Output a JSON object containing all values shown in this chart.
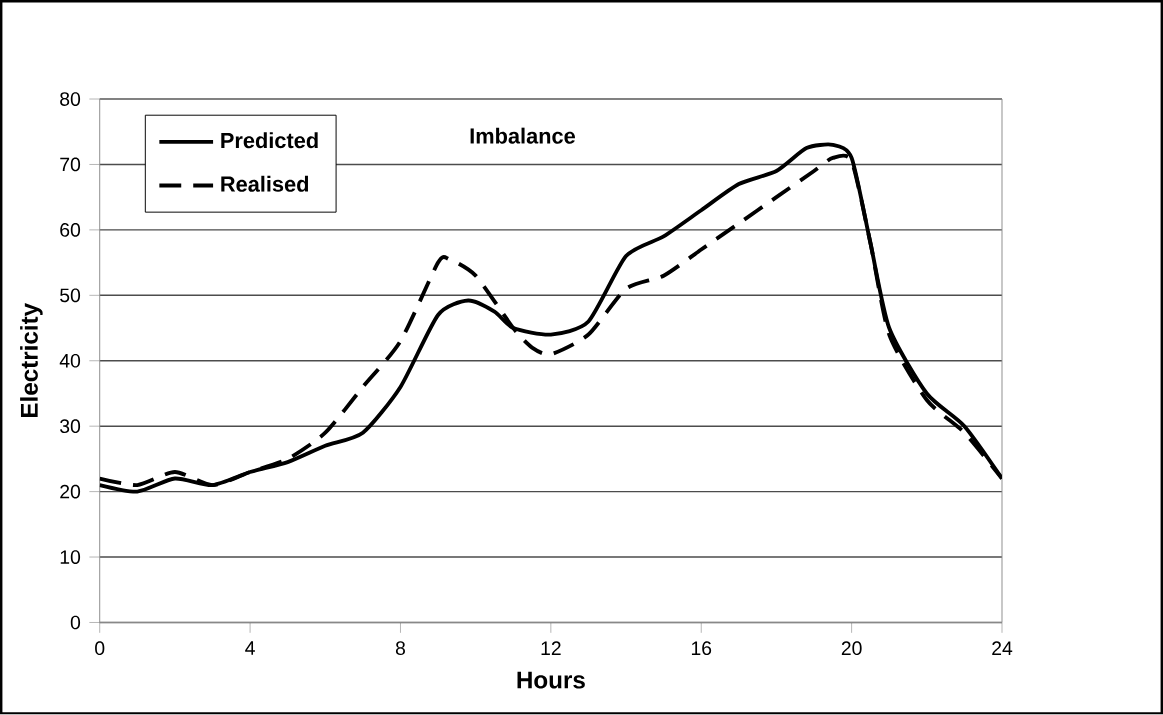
{
  "chart_data": {
    "type": "line",
    "xlabel": "Hours",
    "ylabel": "Electricity",
    "annotations": [
      "Imbalance"
    ],
    "xlim": [
      0,
      24
    ],
    "xticks": [
      0,
      4,
      8,
      12,
      16,
      20,
      24
    ],
    "ylim": [
      0,
      80
    ],
    "yticks": [
      0,
      10,
      20,
      30,
      40,
      50,
      60,
      70,
      80
    ],
    "grid": "y",
    "legend": "top left",
    "series": [
      {
        "name": "Predicted",
        "color": "#000000",
        "line_style": "solid",
        "x": [
          0,
          1,
          2,
          3,
          4,
          5,
          6,
          7,
          8,
          9,
          9.8,
          10.5,
          11,
          12,
          13,
          14,
          15,
          16,
          17,
          18,
          18.8,
          19.5,
          20,
          20.5,
          21,
          22,
          23,
          24
        ],
        "values": [
          21,
          20,
          22,
          21,
          23,
          24.5,
          27,
          29,
          36,
          47,
          49.2,
          47.5,
          45,
          44,
          46,
          56,
          59,
          63,
          67,
          69,
          72.5,
          73,
          71,
          58,
          45,
          35,
          30,
          22
        ]
      },
      {
        "name": "Realised",
        "color": "#000000",
        "line_style": "dashed",
        "x": [
          0,
          1,
          2,
          3,
          4,
          5,
          6,
          7,
          8,
          9,
          9.3,
          10,
          11,
          11.5,
          12,
          13,
          14,
          15,
          16,
          17,
          18,
          19,
          19.5,
          20,
          20.5,
          21,
          22,
          23,
          24
        ],
        "values": [
          22,
          21,
          23,
          21,
          23,
          25,
          29,
          36,
          43,
          55,
          55.5,
          53,
          45,
          42,
          41,
          44,
          51,
          53,
          57,
          61,
          65,
          69,
          71,
          70.5,
          58,
          44,
          34,
          29,
          22
        ]
      }
    ]
  }
}
